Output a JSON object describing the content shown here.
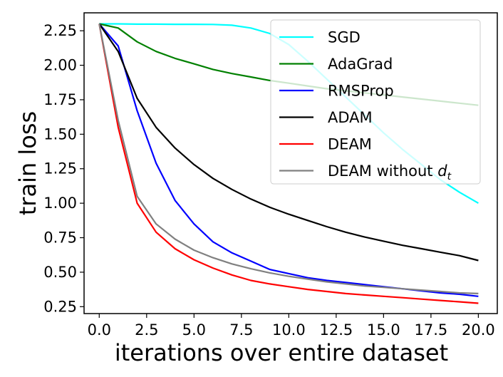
{
  "chart_data": {
    "type": "line",
    "title": "",
    "xlabel": "iterations over entire dataset",
    "ylabel": "train loss",
    "xlim": [
      -0.8,
      21
    ],
    "ylim": [
      0.2,
      2.38
    ],
    "xticks": [
      0.0,
      2.5,
      5.0,
      7.5,
      10.0,
      12.5,
      15.0,
      17.5,
      20.0
    ],
    "xtick_labels": [
      "0.0",
      "2.5",
      "5.0",
      "7.5",
      "10.0",
      "12.5",
      "15.0",
      "17.5",
      "20.0"
    ],
    "yticks": [
      0.25,
      0.5,
      0.75,
      1.0,
      1.25,
      1.5,
      1.75,
      2.0,
      2.25
    ],
    "ytick_labels": [
      "0.25",
      "0.50",
      "0.75",
      "1.00",
      "1.25",
      "1.50",
      "1.75",
      "2.00",
      "2.25"
    ],
    "grid": false,
    "legend_position": "top-right",
    "x": [
      0,
      1,
      2,
      3,
      4,
      5,
      6,
      7,
      8,
      9,
      10,
      11,
      12,
      13,
      14,
      15,
      16,
      17,
      18,
      19,
      20
    ],
    "series": [
      {
        "name": "SGD",
        "color": "#00ffff",
        "values": [
          2.3,
          2.3,
          2.298,
          2.298,
          2.297,
          2.297,
          2.296,
          2.29,
          2.27,
          2.23,
          2.15,
          2.03,
          1.9,
          1.77,
          1.64,
          1.51,
          1.39,
          1.28,
          1.17,
          1.08,
          1.0
        ]
      },
      {
        "name": "AdaGrad",
        "color": "#008000",
        "values": [
          2.3,
          2.27,
          2.17,
          2.1,
          2.05,
          2.01,
          1.97,
          1.94,
          1.915,
          1.89,
          1.87,
          1.85,
          1.83,
          1.815,
          1.8,
          1.785,
          1.77,
          1.755,
          1.74,
          1.725,
          1.71
        ]
      },
      {
        "name": "RMSProp",
        "color": "#0000ff",
        "values": [
          2.3,
          2.14,
          1.67,
          1.29,
          1.02,
          0.85,
          0.72,
          0.64,
          0.58,
          0.52,
          0.49,
          0.46,
          0.44,
          0.425,
          0.41,
          0.395,
          0.38,
          0.365,
          0.35,
          0.34,
          0.325
        ]
      },
      {
        "name": "ADAM",
        "color": "#000000",
        "values": [
          2.3,
          2.1,
          1.76,
          1.55,
          1.4,
          1.28,
          1.18,
          1.1,
          1.03,
          0.97,
          0.92,
          0.875,
          0.83,
          0.79,
          0.755,
          0.725,
          0.695,
          0.67,
          0.645,
          0.62,
          0.585
        ]
      },
      {
        "name": "DEAM",
        "color": "#ff0000",
        "values": [
          2.3,
          1.55,
          1.0,
          0.79,
          0.67,
          0.59,
          0.53,
          0.48,
          0.44,
          0.415,
          0.395,
          0.375,
          0.36,
          0.345,
          0.335,
          0.325,
          0.315,
          0.305,
          0.295,
          0.285,
          0.275
        ]
      },
      {
        "name": "DEAM without d_t",
        "color": "#808080",
        "legend_text": "DEAM without ",
        "legend_var": "d",
        "legend_sub": "t",
        "values": [
          2.3,
          1.6,
          1.05,
          0.85,
          0.74,
          0.66,
          0.605,
          0.56,
          0.525,
          0.495,
          0.47,
          0.45,
          0.43,
          0.415,
          0.4,
          0.39,
          0.38,
          0.37,
          0.36,
          0.35,
          0.345
        ]
      }
    ]
  }
}
